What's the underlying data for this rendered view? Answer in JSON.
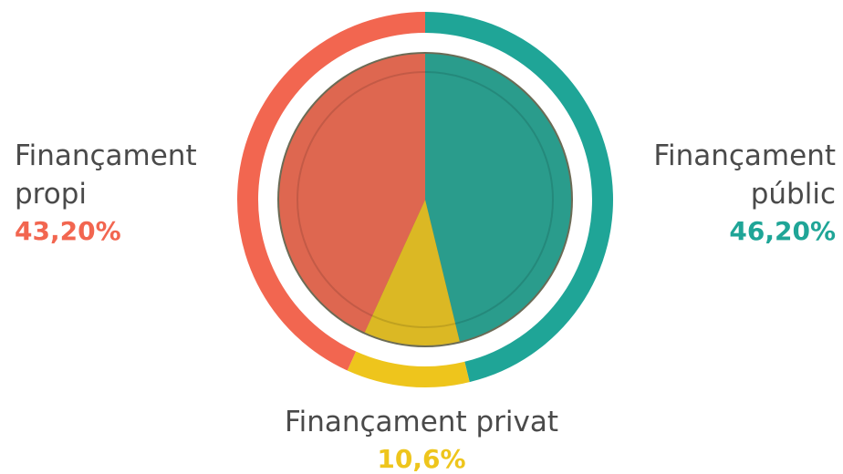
{
  "chart_data": {
    "type": "donut",
    "categories": [
      "Finançament públic",
      "Finançament privat",
      "Finançament propi"
    ],
    "values": [
      46.2,
      10.6,
      43.2
    ],
    "value_labels": [
      "46,20%",
      "10,6%",
      "43,20%"
    ],
    "colors": [
      "#1fa597",
      "#eec51c",
      "#f26650"
    ]
  }
}
